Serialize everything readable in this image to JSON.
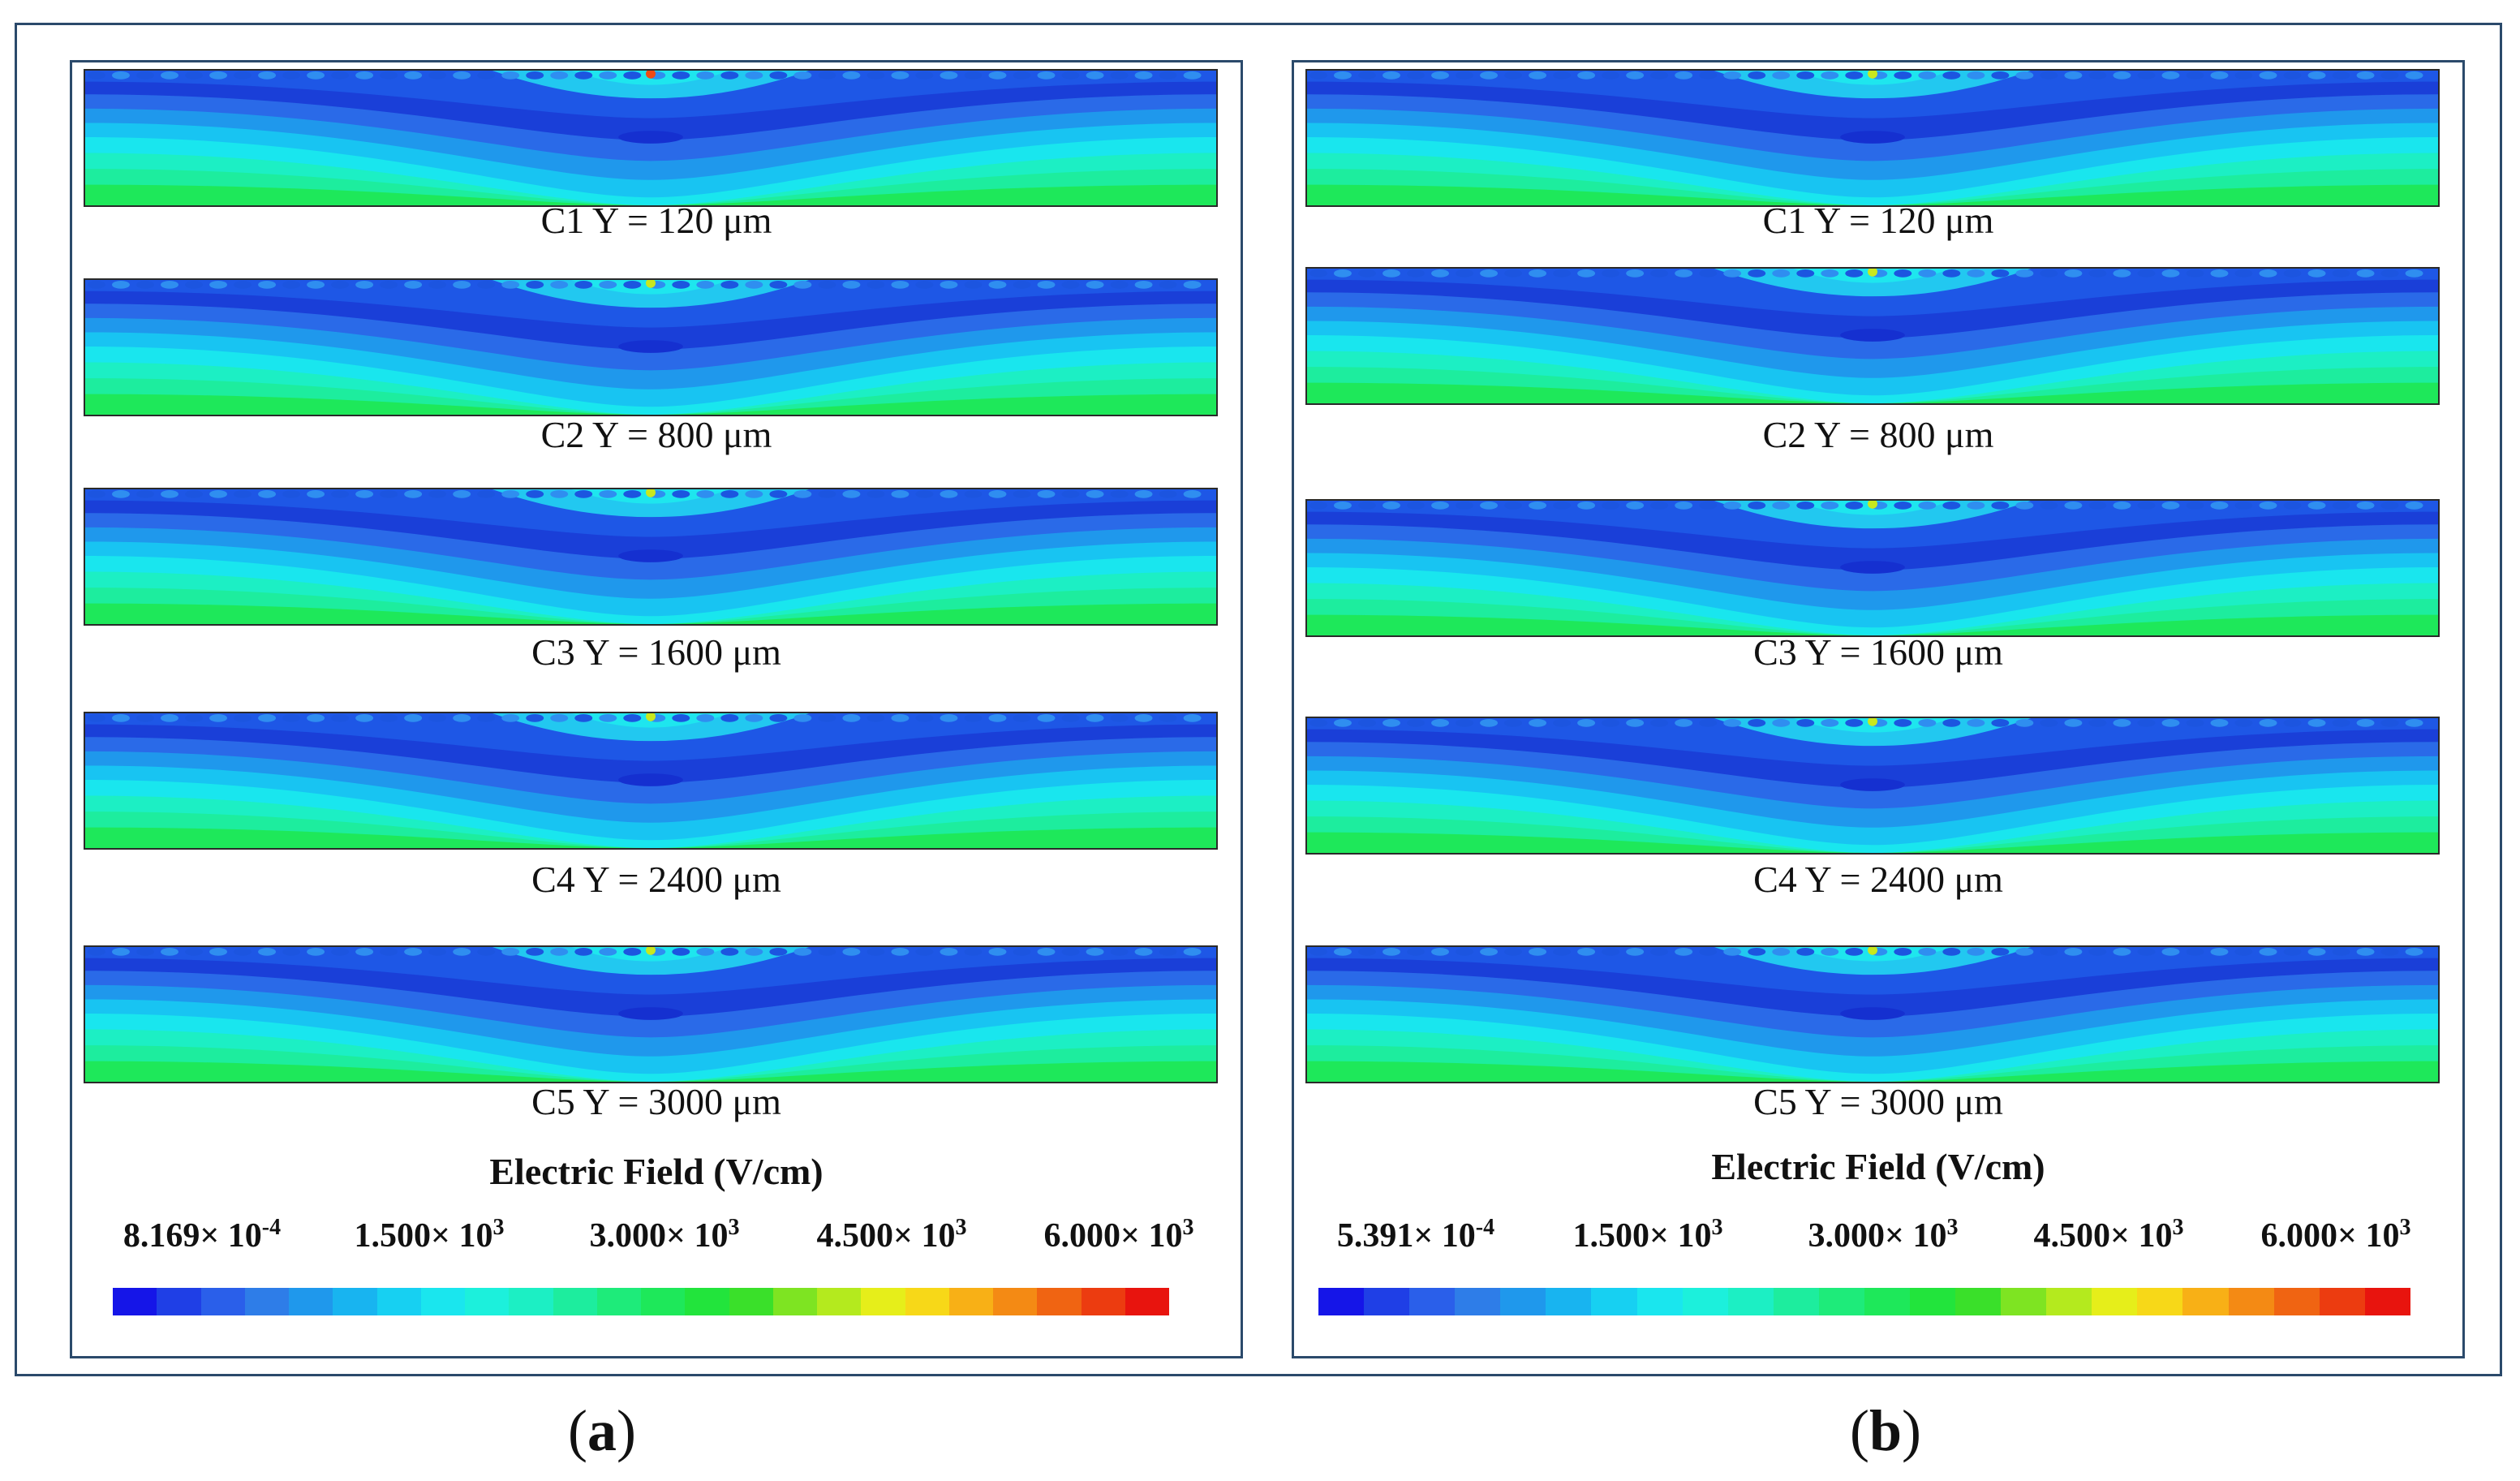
{
  "figure": {
    "panels": [
      {
        "id": "a",
        "label_open": "(",
        "label_letter": "a",
        "label_close": ")",
        "captions": [
          "C1 Y = 120 μm",
          "C2 Y = 800 μm",
          "C3 Y = 1600 μm",
          "C4 Y = 2400 μm",
          "C5 Y = 3000 μm"
        ],
        "legend_title": "Electric Field (V/cm)",
        "legend_ticks": [
          {
            "mantissa": "8.169",
            "exponent": "-4"
          },
          {
            "mantissa": "1.500",
            "exponent": "3"
          },
          {
            "mantissa": "3.000",
            "exponent": "3"
          },
          {
            "mantissa": "4.500",
            "exponent": "3"
          },
          {
            "mantissa": "6.000",
            "exponent": "3"
          }
        ]
      },
      {
        "id": "b",
        "label_open": "(",
        "label_letter": "b",
        "label_close": ")",
        "captions": [
          "C1 Y = 120 μm",
          "C2 Y = 800 μm",
          "C3 Y = 1600 μm",
          "C4 Y = 2400 μm",
          "C5 Y = 3000 μm"
        ],
        "legend_title": "Electric Field (V/cm)",
        "legend_ticks": [
          {
            "mantissa": "5.391",
            "exponent": "-4"
          },
          {
            "mantissa": "1.500",
            "exponent": "3"
          },
          {
            "mantissa": "3.000",
            "exponent": "3"
          },
          {
            "mantissa": "4.500",
            "exponent": "3"
          },
          {
            "mantissa": "6.000",
            "exponent": "3"
          }
        ]
      }
    ],
    "times_sign": "×",
    "colormap": [
      "#1515e8",
      "#1f3fe6",
      "#2a5fea",
      "#2e7de8",
      "#1f98ec",
      "#18b4f0",
      "#17d0f2",
      "#1ae6ee",
      "#1cf0dc",
      "#1cefc4",
      "#1ded9e",
      "#1eeb7a",
      "#1ee85a",
      "#22e43c",
      "#3ae02a",
      "#7ee422",
      "#b4ea1e",
      "#e6ee1a",
      "#f7d818",
      "#f8b016",
      "#f48a14",
      "#f06412",
      "#ec3c10",
      "#e8140e"
    ]
  }
}
